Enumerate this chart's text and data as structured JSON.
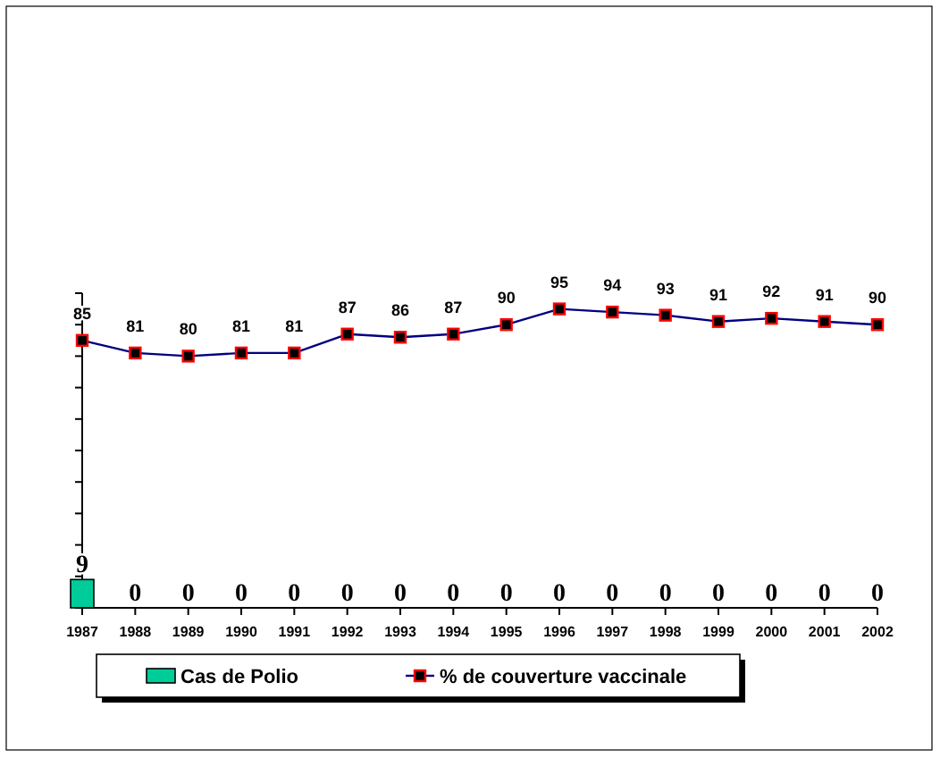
{
  "chart_data": {
    "type": "bar",
    "categories": [
      "1987",
      "1988",
      "1989",
      "1990",
      "1991",
      "1992",
      "1993",
      "1994",
      "1995",
      "1996",
      "1997",
      "1998",
      "1999",
      "2000",
      "2001",
      "2002"
    ],
    "series": [
      {
        "name": "Cas de Polio",
        "color": "#00cc99",
        "values": [
          9,
          0,
          0,
          0,
          0,
          0,
          0,
          0,
          0,
          0,
          0,
          0,
          0,
          0,
          0,
          0
        ]
      },
      {
        "name": "% de couverture vaccinale",
        "type": "line",
        "color": "#000080",
        "marker": "square",
        "values": [
          85,
          81,
          80,
          81,
          81,
          87,
          86,
          87,
          90,
          95,
          94,
          93,
          91,
          92,
          91,
          90
        ]
      }
    ],
    "ylim": [
      0,
      100
    ],
    "yticks": [
      {
        "value": 0,
        "label": null
      },
      {
        "value": 10,
        "label": null
      },
      {
        "value": 20,
        "label": null
      },
      {
        "value": 30,
        "label": null
      },
      {
        "value": 40,
        "label": null
      },
      {
        "value": 50,
        "label": null
      },
      {
        "value": 60,
        "label": null
      },
      {
        "value": 70,
        "label": null
      },
      {
        "value": 80,
        "label": null
      },
      {
        "value": 90,
        "label": null
      },
      {
        "value": 100,
        "label": null
      }
    ],
    "tick_labels": "x",
    "data_labels": true,
    "legend": "bottom",
    "grid": false
  }
}
